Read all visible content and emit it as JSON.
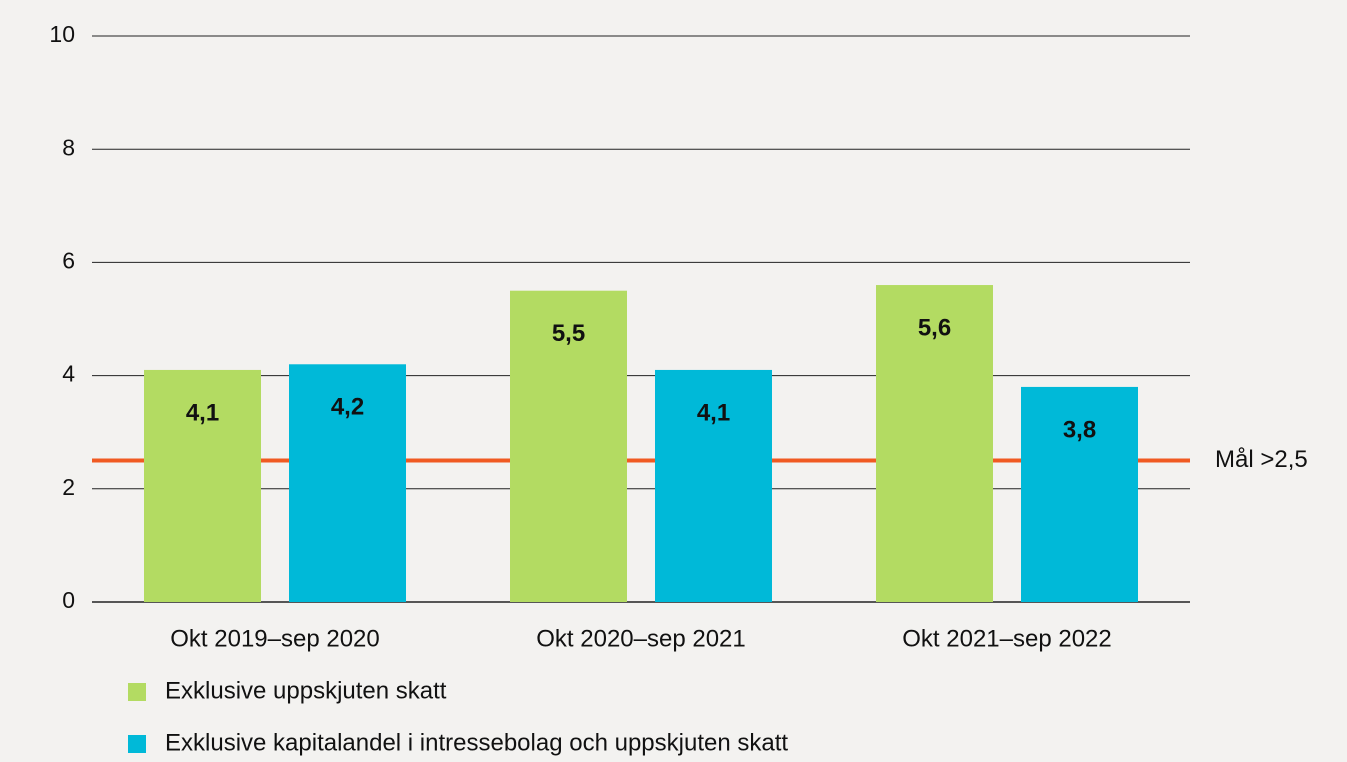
{
  "chart_data": {
    "type": "bar",
    "categories": [
      "Okt 2019–sep 2020",
      "Okt 2020–sep 2021",
      "Okt 2021–sep 2022"
    ],
    "series": [
      {
        "name": "Exklusive uppskjuten skatt",
        "color": "#b3db62",
        "values": [
          4.1,
          5.5,
          5.6
        ],
        "value_labels": [
          "4,1",
          "5,5",
          "5,6"
        ]
      },
      {
        "name": "Exklusive kapitalandel i intressebolag och uppskjuten skatt",
        "color": "#00b9d8",
        "values": [
          4.2,
          4.1,
          3.8
        ],
        "value_labels": [
          "4,2",
          "4,1",
          "3,8"
        ]
      }
    ],
    "ylim": [
      0,
      10
    ],
    "yticks": [
      0,
      2,
      4,
      6,
      8,
      10
    ],
    "grid": true,
    "reference_line": {
      "value": 2.5,
      "label": "Mål >2,5",
      "color": "#f05a22"
    }
  }
}
